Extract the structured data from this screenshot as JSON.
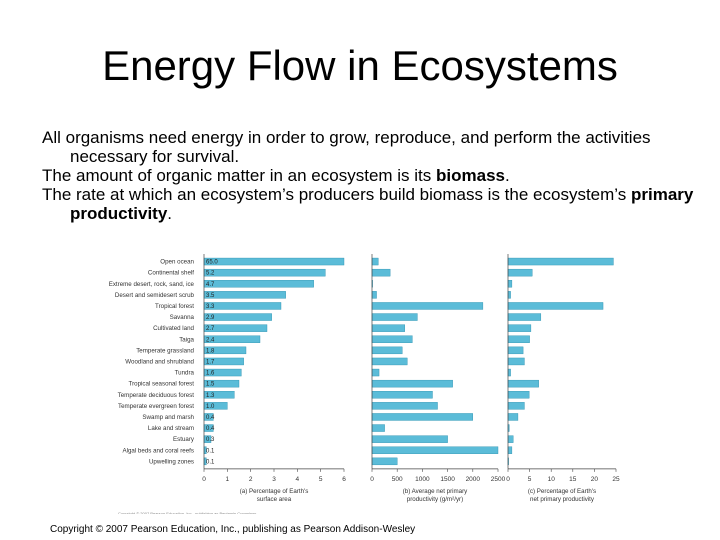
{
  "slide": {
    "title": "Energy Flow in Ecosystems",
    "bullets": [
      {
        "text": "All organisms need energy in order to grow, reproduce, and perform the activities necessary for survival."
      },
      {
        "pre": "The amount of organic matter in an ecosystem is its ",
        "bold": "biomass",
        "post": "."
      },
      {
        "pre": "The rate at which an ecosystem’s producers build biomass is the ecosystem’s ",
        "bold": "primary productivity",
        "post": "."
      }
    ],
    "figure_credit": "Copyright © 2007 Pearson Education, Inc., publishing as Benjamin Cummings",
    "copyright": "Copyright © 2007 Pearson Education, Inc., publishing as Pearson Addison-Wesley"
  },
  "chart_data": {
    "type": "bar",
    "orientation": "horizontal",
    "bar_color": "#5bbcd8",
    "categories": [
      "Open ocean",
      "Continental shelf",
      "Extreme desert, rock, sand, ice",
      "Desert and semidesert scrub",
      "Tropical forest",
      "Savanna",
      "Cultivated land",
      "Taiga",
      "Temperate grassland",
      "Woodland and shrubland",
      "Tundra",
      "Tropical seasonal forest",
      "Temperate deciduous forest",
      "Temperate evergreen forest",
      "Swamp and marsh",
      "Lake and stream",
      "Estuary",
      "Algal beds and coral reefs",
      "Upwelling zones"
    ],
    "panels": [
      {
        "label": "(a) Percentage of Earth's surface area",
        "ticks": [
          0,
          1,
          2,
          3,
          4,
          5,
          6
        ],
        "xlim": [
          0,
          6
        ],
        "values": [
          65.0,
          5.2,
          4.7,
          3.5,
          3.3,
          2.9,
          2.7,
          2.4,
          1.8,
          1.7,
          1.6,
          1.5,
          1.3,
          1.0,
          0.4,
          0.4,
          0.3,
          0.1,
          0.1
        ],
        "value_labels": [
          "65.0",
          "5.2",
          "4.7",
          "3.5",
          "3.3",
          "2.9",
          "2.7",
          "2.4",
          "1.8",
          "1.7",
          "1.6",
          "1.5",
          "1.3",
          "1.0",
          "0.4",
          "0.4",
          "0.3",
          "0.1",
          "0.1"
        ]
      },
      {
        "label": "(b) Average net primary productivity (g/m²/yr)",
        "ticks": [
          0,
          500,
          1000,
          1500,
          2000,
          2500
        ],
        "xlim": [
          0,
          2500
        ],
        "values": [
          125,
          360,
          3,
          90,
          2200,
          900,
          650,
          800,
          600,
          700,
          140,
          1600,
          1200,
          1300,
          2000,
          250,
          1500,
          2500,
          500
        ]
      },
      {
        "label": "(c) Percentage of Earth's net primary productivity",
        "ticks": [
          0,
          5,
          10,
          15,
          20,
          25
        ],
        "xlim": [
          0,
          25
        ],
        "values": [
          24.4,
          5.6,
          0.9,
          0.6,
          22.0,
          7.6,
          5.3,
          5.0,
          3.5,
          3.8,
          0.6,
          7.1,
          4.9,
          3.8,
          2.3,
          0.3,
          1.2,
          0.9,
          0.1
        ]
      }
    ]
  }
}
